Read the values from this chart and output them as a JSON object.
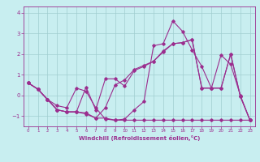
{
  "xlabel": "Windchill (Refroidissement éolien,°C)",
  "x": [
    0,
    1,
    2,
    3,
    4,
    5,
    6,
    7,
    8,
    9,
    10,
    11,
    12,
    13,
    14,
    15,
    16,
    17,
    18,
    19,
    20,
    21,
    22,
    23
  ],
  "line1": [
    0.6,
    0.3,
    -0.2,
    -0.7,
    -0.8,
    -0.8,
    -0.9,
    -1.1,
    -1.1,
    -1.2,
    -1.2,
    -1.2,
    -1.2,
    -1.2,
    -1.2,
    -1.2,
    -1.2,
    -1.2,
    -1.2,
    -1.2,
    -1.2,
    -1.2,
    -1.2,
    -1.2
  ],
  "line2": [
    0.6,
    0.3,
    -0.2,
    -0.5,
    -0.6,
    0.35,
    0.2,
    -0.6,
    -1.15,
    -1.2,
    -1.15,
    -0.7,
    -0.3,
    2.4,
    2.5,
    3.6,
    3.1,
    2.2,
    1.4,
    0.35,
    1.95,
    1.5,
    0.0,
    -1.2
  ],
  "line3": [
    0.6,
    0.3,
    -0.2,
    -0.7,
    -0.8,
    -0.8,
    0.4,
    -0.7,
    0.8,
    0.8,
    0.45,
    1.2,
    1.4,
    1.65,
    2.1,
    2.5,
    2.55,
    2.7,
    0.35,
    0.35,
    0.35,
    2.0,
    -0.05,
    -1.2
  ],
  "line4": [
    0.6,
    0.3,
    -0.2,
    -0.7,
    -0.8,
    -0.8,
    -0.85,
    -1.1,
    -0.6,
    0.5,
    0.75,
    1.25,
    1.45,
    1.65,
    2.15,
    2.5,
    2.55,
    2.7,
    0.35,
    0.35,
    0.35,
    2.0,
    -0.05,
    -1.2
  ],
  "line_color": "#9b2d8e",
  "bg_color": "#c8eef0",
  "grid_color": "#a0cdd0",
  "ylim": [
    -1.5,
    4.3
  ],
  "xlim": [
    -0.5,
    23.5
  ],
  "yticks": [
    -1,
    0,
    1,
    2,
    3,
    4
  ],
  "xticks": [
    0,
    1,
    2,
    3,
    4,
    5,
    6,
    7,
    8,
    9,
    10,
    11,
    12,
    13,
    14,
    15,
    16,
    17,
    18,
    19,
    20,
    21,
    22,
    23
  ]
}
